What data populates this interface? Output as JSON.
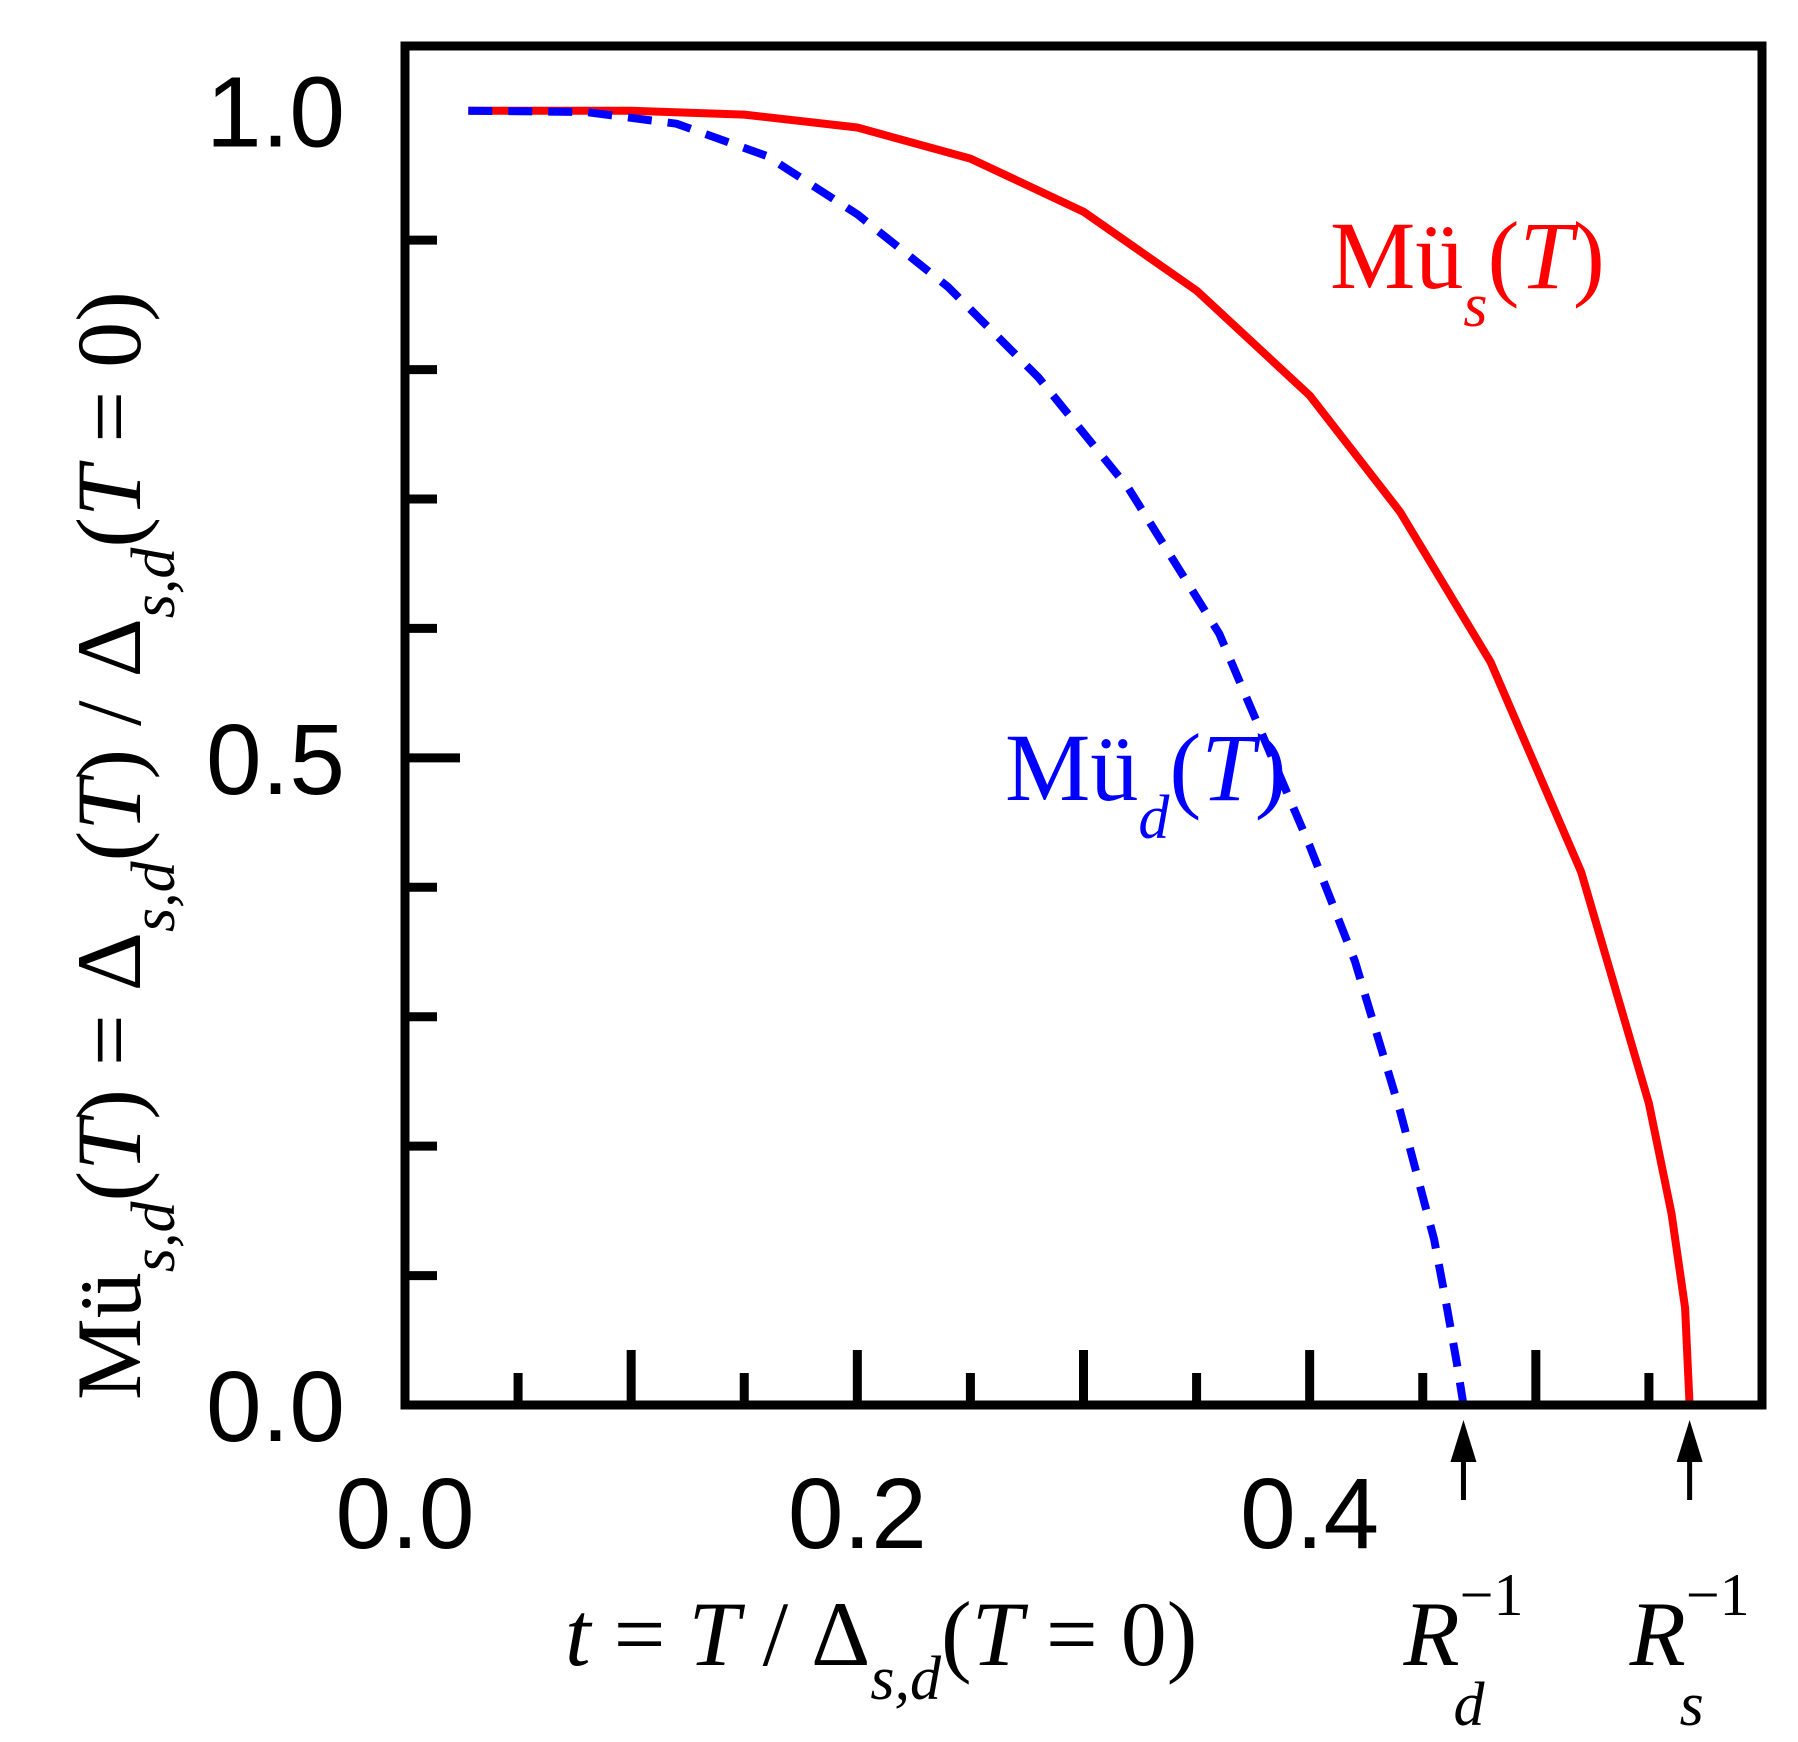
{
  "chart_data": {
    "type": "line",
    "xlim": [
      0.0,
      0.6
    ],
    "ylim": [
      0.0,
      1.05
    ],
    "x_ticks_major": [
      "0.0",
      "0.2",
      "0.4"
    ],
    "y_ticks_labeled": [
      "0.0",
      "0.5",
      "1.0"
    ],
    "xlabel": "t = T / Δs,d(T = 0)",
    "xlabel_parts": {
      "t": "t",
      "eq": " = ",
      "T": "T",
      "slash": " / Δ",
      "sub": "s,d",
      "tail_open": "(",
      "tail_T": "T",
      "tail_close": " = 0)"
    },
    "ylabel": "Müs,d(T) = Δs,d(T) / Δs,d(T = 0)",
    "ylabel_parts": {
      "mu": "Mü",
      "sub1": "s,d",
      "p1": "(",
      "T1": "T",
      "p2": ") = Δ",
      "sub2": "s,d",
      "p3": "(",
      "T2": "T",
      "p4": ") / Δ",
      "sub3": "s,d",
      "p5": "(",
      "T3": "T",
      "p6": " = 0)"
    },
    "series": [
      {
        "name": "Müs(T)",
        "label_main": "Mü",
        "label_sub": "s",
        "label_open": "(",
        "label_T": "T",
        "label_close": ")",
        "color": "#ff0000",
        "style": "solid",
        "x": [
          0.028,
          0.1,
          0.15,
          0.2,
          0.25,
          0.3,
          0.35,
          0.4,
          0.44,
          0.48,
          0.52,
          0.55,
          0.56,
          0.566,
          0.568
        ],
        "y": [
          1.0,
          1.0,
          0.997,
          0.987,
          0.963,
          0.922,
          0.861,
          0.78,
          0.69,
          0.574,
          0.412,
          0.233,
          0.148,
          0.075,
          0.0
        ]
      },
      {
        "name": "Müd(T)",
        "label_main": "Mü",
        "label_sub": "d",
        "label_open": "(",
        "label_T": "T",
        "label_close": ")",
        "color": "#0000ff",
        "style": "dashed",
        "x": [
          0.028,
          0.08,
          0.12,
          0.16,
          0.2,
          0.24,
          0.28,
          0.32,
          0.36,
          0.4,
          0.42,
          0.44,
          0.455,
          0.46,
          0.465,
          0.468
        ],
        "y": [
          1.0,
          0.999,
          0.99,
          0.965,
          0.92,
          0.864,
          0.794,
          0.708,
          0.596,
          0.432,
          0.343,
          0.227,
          0.128,
          0.082,
          0.033,
          0.0
        ]
      }
    ],
    "annotations": [
      {
        "text_main": "R",
        "text_sup": "−1",
        "text_sub": "d",
        "x": 0.468
      },
      {
        "text_main": "R",
        "text_sup": "−1",
        "text_sub": "s",
        "x": 0.568
      }
    ],
    "grid": false,
    "legend": "inline labels"
  }
}
